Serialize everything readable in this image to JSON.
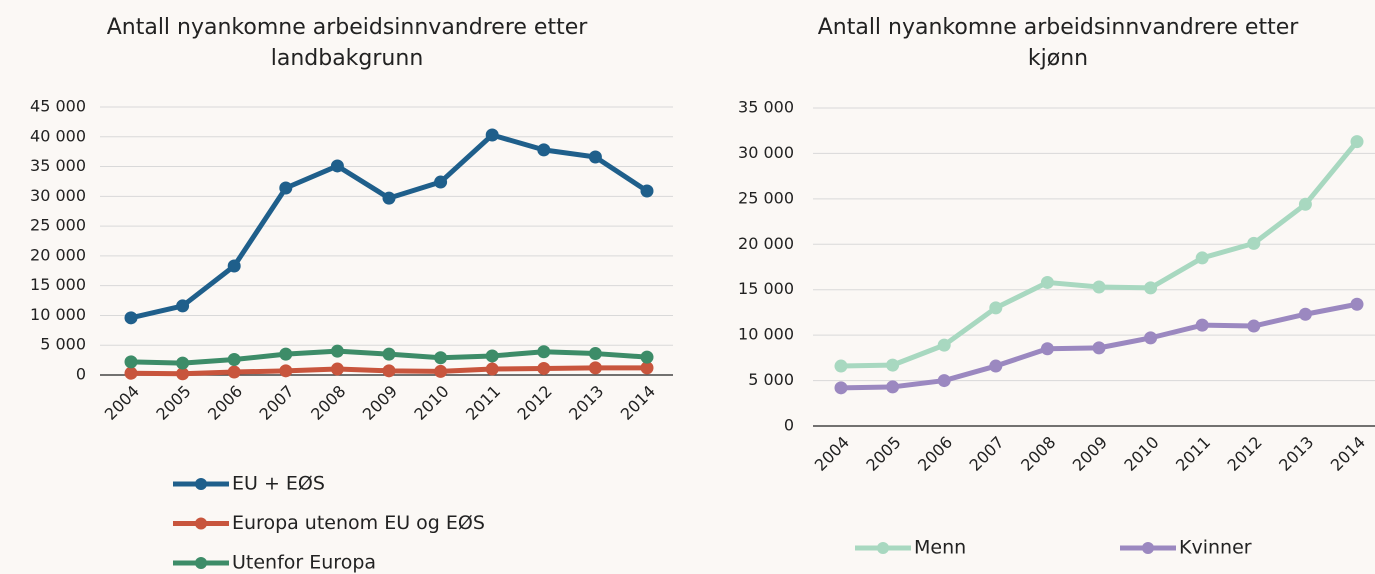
{
  "chart_data": [
    {
      "type": "line",
      "title": "Antall nyankomne arbeidsinnvandrere etter landbakgrunn",
      "categories": [
        "2004",
        "2005",
        "2006",
        "2007",
        "2008",
        "2009",
        "2010",
        "2011",
        "2012",
        "2013",
        "2014"
      ],
      "series": [
        {
          "name": "EU + EØS",
          "color": "#1f5f8b",
          "values": [
            9600,
            11600,
            18300,
            31400,
            35100,
            29700,
            32400,
            40300,
            37800,
            36600,
            30900
          ]
        },
        {
          "name": "Europa utenom EU og EØS",
          "color": "#c8553d",
          "values": [
            300,
            200,
            500,
            700,
            1000,
            700,
            600,
            1000,
            1100,
            1200,
            1200
          ]
        },
        {
          "name": "Utenfor Europa",
          "color": "#3d8c68",
          "values": [
            2200,
            2000,
            2600,
            3500,
            4000,
            3500,
            2900,
            3200,
            3900,
            3600,
            3000
          ]
        }
      ],
      "ylim": [
        0,
        45000
      ],
      "yticks": [
        0,
        {
          "value": 5000,
          "label": "5 000"
        },
        {
          "value": 10000,
          "label": "10 000"
        },
        {
          "value": 15000,
          "label": "15 000"
        },
        {
          "value": 20000,
          "label": "20 000"
        },
        {
          "value": 25000,
          "label": "25 000"
        },
        {
          "value": 30000,
          "label": "30 000"
        },
        {
          "value": 35000,
          "label": "35 000"
        },
        {
          "value": 40000,
          "label": "40 000"
        },
        {
          "value": 45000,
          "label": "45 000"
        }
      ],
      "grid": true,
      "legend": "bottom"
    },
    {
      "type": "line",
      "title": "Antall nyankomne arbeidsinnvandrere etter kjønn",
      "categories": [
        "2004",
        "2005",
        "2006",
        "2007",
        "2008",
        "2009",
        "2010",
        "2011",
        "2012",
        "2013",
        "2014"
      ],
      "series": [
        {
          "name": "Menn",
          "color": "#a8d8c0",
          "values": [
            6600,
            6700,
            8900,
            13000,
            15800,
            15300,
            15200,
            18500,
            20100,
            24400,
            31300
          ]
        },
        {
          "name": "Kvinner",
          "color": "#9b88c0",
          "values": [
            4200,
            4300,
            5000,
            6600,
            8500,
            8600,
            9700,
            11100,
            11000,
            12300,
            13400
          ]
        }
      ],
      "ylim": [
        0,
        35000
      ],
      "yticks": [
        0,
        {
          "value": 5000,
          "label": "5 000"
        },
        {
          "value": 10000,
          "label": "10 000"
        },
        {
          "value": 15000,
          "label": "15 000"
        },
        {
          "value": 20000,
          "label": "20 000"
        },
        {
          "value": 25000,
          "label": "25 000"
        },
        {
          "value": 30000,
          "label": "30 000"
        },
        {
          "value": 35000,
          "label": "35 000"
        }
      ],
      "grid": true,
      "legend": "bottom"
    }
  ]
}
